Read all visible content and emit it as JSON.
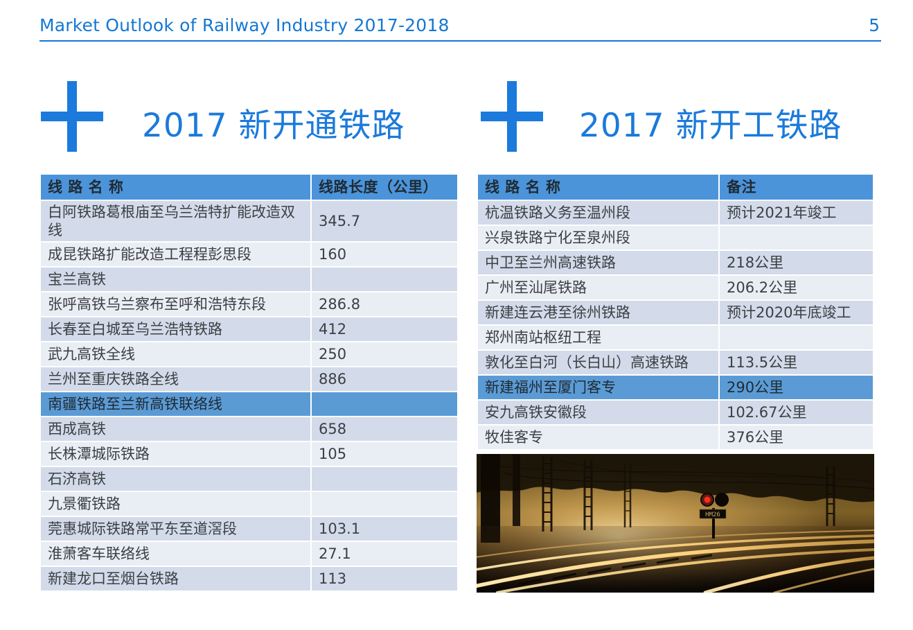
{
  "header": {
    "title": "Market Outlook of Railway Industry 2017-2018",
    "page_number": "5"
  },
  "sections": {
    "opened": {
      "title": "2017 新开通铁路"
    },
    "started": {
      "title": "2017 新开工铁路"
    }
  },
  "tables": {
    "opened": {
      "headers": [
        "线 路 名 称",
        "线路长度（公里）"
      ],
      "rows": [
        {
          "name": "白阿铁路葛根庙至乌兰浩特扩能改造双线",
          "value": "345.7",
          "highlight": false
        },
        {
          "name": "成昆铁路扩能改造工程程彭思段",
          "value": "160",
          "highlight": false
        },
        {
          "name": "宝兰高铁",
          "value": "",
          "highlight": false
        },
        {
          "name": "张呼高铁乌兰察布至呼和浩特东段",
          "value": "286.8",
          "highlight": false
        },
        {
          "name": "长春至白城至乌兰浩特铁路",
          "value": "412",
          "highlight": false
        },
        {
          "name": "武九高铁全线",
          "value": "250",
          "highlight": false
        },
        {
          "name": "兰州至重庆铁路全线",
          "value": "886",
          "highlight": false
        },
        {
          "name": "南疆铁路至兰新高铁联络线",
          "value": "",
          "highlight": true
        },
        {
          "name": "西成高铁",
          "value": "658",
          "highlight": false
        },
        {
          "name": "长株潭城际铁路",
          "value": "105",
          "highlight": false
        },
        {
          "name": "石济高铁",
          "value": "",
          "highlight": false
        },
        {
          "name": "九景衢铁路",
          "value": "",
          "highlight": false
        },
        {
          "name": "莞惠城际铁路常平东至道滘段",
          "value": "103.1",
          "highlight": false
        },
        {
          "name": "淮萧客车联络线",
          "value": "27.1",
          "highlight": false
        },
        {
          "name": "新建龙口至烟台铁路",
          "value": "113",
          "highlight": false
        }
      ]
    },
    "started": {
      "headers": [
        "线 路 名 称",
        "备注"
      ],
      "rows": [
        {
          "name": "杭温铁路义务至温州段",
          "value": "预计2021年竣工",
          "highlight": false
        },
        {
          "name": "兴泉铁路宁化至泉州段",
          "value": "",
          "highlight": false
        },
        {
          "name": "中卫至兰州高速铁路",
          "value": "218公里",
          "highlight": false
        },
        {
          "name": "广州至汕尾铁路",
          "value": "206.2公里",
          "highlight": false
        },
        {
          "name": "新建连云港至徐州铁路",
          "value": "预计2020年底竣工",
          "highlight": false
        },
        {
          "name": "郑州南站枢纽工程",
          "value": "",
          "highlight": false
        },
        {
          "name": "敦化至白河（长白山）高速铁路",
          "value": "113.5公里",
          "highlight": false
        },
        {
          "name": "新建福州至厦门客专",
          "value": "290公里",
          "highlight": true
        },
        {
          "name": "安九高铁安徽段",
          "value": "102.67公里",
          "highlight": false
        },
        {
          "name": "牧佳客专",
          "value": "376公里",
          "highlight": false
        }
      ]
    }
  },
  "photo": {
    "signal_label": "HM26"
  },
  "colors": {
    "accent_blue": "#1B7ADB",
    "header_rule_blue": "#1577D2",
    "table_header_bg": "#4C94DA",
    "table_highlight_bg": "#5B9BD5",
    "band_dark": "#D3DBEA",
    "band_light": "#E9EDF4"
  }
}
